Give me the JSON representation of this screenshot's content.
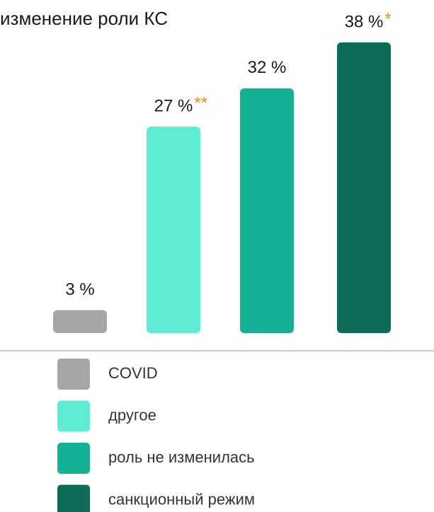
{
  "chart_data": {
    "type": "bar",
    "title": "изменение роли КС",
    "categories": [
      "COVID",
      "другое",
      "роль не изменилась",
      "санкционный режим"
    ],
    "values": [
      3,
      27,
      32,
      38
    ],
    "value_labels": [
      "3 %",
      "27 %",
      "32 %",
      "38 %"
    ],
    "colors": [
      "#a6a6a6",
      "#5eecd3",
      "#14b194",
      "#0e6b58"
    ],
    "annotations": [
      {
        "category": "другое",
        "text": "**"
      },
      {
        "category": "санкционный режим",
        "text": "*"
      }
    ],
    "ylim": [
      0,
      38
    ],
    "legend": "bottom"
  }
}
